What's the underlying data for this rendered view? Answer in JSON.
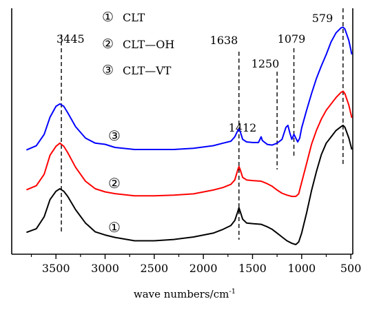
{
  "chart_data": {
    "type": "line",
    "xlabel": "wave numbers/cm",
    "xlabel_sup": "-1",
    "ylabel": "",
    "x_reversed": true,
    "xlim": [
      3950,
      480
    ],
    "y_units": "arbitrary (offset, stacked)",
    "grid": false,
    "x_ticks": [
      3500,
      3000,
      2500,
      2000,
      1500,
      1000,
      500
    ],
    "x_tick_labels": [
      "3500",
      "3000",
      "2500",
      "2000",
      "1500",
      "1000",
      "500"
    ],
    "legend": {
      "placement": "top-center",
      "entries": [
        {
          "marker": "①",
          "label": "CLT"
        },
        {
          "marker": "②",
          "label": "CLT—OH"
        },
        {
          "marker": "③",
          "label": "CLT—VT"
        }
      ]
    },
    "curve_labels": [
      "①",
      "②",
      "③"
    ],
    "peak_annotations": [
      {
        "x": 3445,
        "label": "3445"
      },
      {
        "x": 1638,
        "label": "1638"
      },
      {
        "x": 1412,
        "label": "1412"
      },
      {
        "x": 1250,
        "label": "1250"
      },
      {
        "x": 1079,
        "label": "1079"
      },
      {
        "x": 579,
        "label": "579"
      }
    ],
    "series": [
      {
        "name": "CLT",
        "marker": "①",
        "color": "#000000",
        "points": [
          [
            3800,
            18
          ],
          [
            3700,
            24
          ],
          [
            3620,
            45
          ],
          [
            3560,
            70
          ],
          [
            3500,
            84
          ],
          [
            3460,
            88
          ],
          [
            3420,
            84
          ],
          [
            3380,
            76
          ],
          [
            3300,
            55
          ],
          [
            3200,
            34
          ],
          [
            3100,
            20
          ],
          [
            3000,
            14
          ],
          [
            2900,
            10
          ],
          [
            2700,
            6
          ],
          [
            2500,
            6
          ],
          [
            2300,
            8
          ],
          [
            2100,
            12
          ],
          [
            1900,
            18
          ],
          [
            1800,
            24
          ],
          [
            1720,
            30
          ],
          [
            1680,
            38
          ],
          [
            1650,
            52
          ],
          [
            1638,
            58
          ],
          [
            1625,
            52
          ],
          [
            1600,
            40
          ],
          [
            1560,
            34
          ],
          [
            1500,
            33
          ],
          [
            1412,
            32
          ],
          [
            1350,
            28
          ],
          [
            1300,
            24
          ],
          [
            1250,
            18
          ],
          [
            1200,
            12
          ],
          [
            1150,
            6
          ],
          [
            1100,
            2
          ],
          [
            1060,
            0
          ],
          [
            1030,
            4
          ],
          [
            1000,
            18
          ],
          [
            950,
            50
          ],
          [
            900,
            85
          ],
          [
            850,
            115
          ],
          [
            800,
            142
          ],
          [
            750,
            160
          ],
          [
            700,
            170
          ],
          [
            650,
            180
          ],
          [
            600,
            186
          ],
          [
            579,
            188
          ],
          [
            560,
            185
          ],
          [
            520,
            168
          ],
          [
            490,
            150
          ]
        ]
      },
      {
        "name": "CLT—OH",
        "marker": "②",
        "color": "#ff0000",
        "points": [
          [
            3800,
            85
          ],
          [
            3700,
            92
          ],
          [
            3620,
            112
          ],
          [
            3560,
            140
          ],
          [
            3500,
            155
          ],
          [
            3460,
            160
          ],
          [
            3420,
            155
          ],
          [
            3380,
            145
          ],
          [
            3300,
            122
          ],
          [
            3200,
            100
          ],
          [
            3100,
            88
          ],
          [
            3000,
            82
          ],
          [
            2900,
            79
          ],
          [
            2700,
            77
          ],
          [
            2500,
            77
          ],
          [
            2300,
            78
          ],
          [
            2100,
            80
          ],
          [
            1900,
            86
          ],
          [
            1800,
            90
          ],
          [
            1720,
            95
          ],
          [
            1680,
            102
          ],
          [
            1650,
            118
          ],
          [
            1638,
            123
          ],
          [
            1625,
            118
          ],
          [
            1600,
            106
          ],
          [
            1560,
            102
          ],
          [
            1500,
            101
          ],
          [
            1412,
            100
          ],
          [
            1350,
            96
          ],
          [
            1300,
            92
          ],
          [
            1250,
            86
          ],
          [
            1200,
            81
          ],
          [
            1150,
            78
          ],
          [
            1100,
            76
          ],
          [
            1060,
            76
          ],
          [
            1030,
            80
          ],
          [
            1000,
            98
          ],
          [
            950,
            128
          ],
          [
            900,
            158
          ],
          [
            850,
            180
          ],
          [
            800,
            198
          ],
          [
            750,
            212
          ],
          [
            700,
            222
          ],
          [
            650,
            232
          ],
          [
            600,
            240
          ],
          [
            579,
            242
          ],
          [
            560,
            238
          ],
          [
            520,
            220
          ],
          [
            490,
            200
          ]
        ]
      },
      {
        "name": "CLT—VT",
        "marker": "③",
        "color": "#0000ff",
        "points": [
          [
            3800,
            148
          ],
          [
            3700,
            155
          ],
          [
            3620,
            175
          ],
          [
            3560,
            200
          ],
          [
            3500,
            218
          ],
          [
            3460,
            222
          ],
          [
            3420,
            218
          ],
          [
            3380,
            208
          ],
          [
            3300,
            186
          ],
          [
            3200,
            168
          ],
          [
            3100,
            160
          ],
          [
            3000,
            157
          ],
          [
            2900,
            152
          ],
          [
            2700,
            150
          ],
          [
            2500,
            150
          ],
          [
            2300,
            150
          ],
          [
            2100,
            152
          ],
          [
            1900,
            156
          ],
          [
            1800,
            160
          ],
          [
            1720,
            163
          ],
          [
            1680,
            170
          ],
          [
            1650,
            180
          ],
          [
            1638,
            182
          ],
          [
            1625,
            178
          ],
          [
            1600,
            166
          ],
          [
            1560,
            162
          ],
          [
            1500,
            161
          ],
          [
            1440,
            161
          ],
          [
            1412,
            170
          ],
          [
            1400,
            164
          ],
          [
            1350,
            158
          ],
          [
            1300,
            157
          ],
          [
            1250,
            160
          ],
          [
            1200,
            166
          ],
          [
            1160,
            185
          ],
          [
            1140,
            188
          ],
          [
            1120,
            176
          ],
          [
            1100,
            166
          ],
          [
            1079,
            174
          ],
          [
            1060,
            168
          ],
          [
            1040,
            162
          ],
          [
            1020,
            168
          ],
          [
            1000,
            184
          ],
          [
            950,
            212
          ],
          [
            900,
            238
          ],
          [
            850,
            262
          ],
          [
            800,
            282
          ],
          [
            750,
            300
          ],
          [
            700,
            320
          ],
          [
            650,
            334
          ],
          [
            600,
            342
          ],
          [
            579,
            343
          ],
          [
            560,
            340
          ],
          [
            520,
            322
          ],
          [
            490,
            300
          ]
        ]
      }
    ]
  }
}
